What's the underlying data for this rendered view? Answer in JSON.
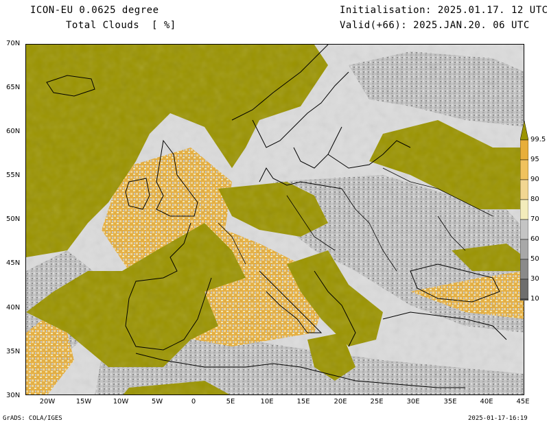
{
  "header": {
    "model": "ICON-EU 0.0625 degree",
    "variable": "Total Clouds  [ %]",
    "initialisation": "Initialisation: 2025.01.17. 12 UTC",
    "valid": "Valid(+66): 2025.JAN.20. 06 UTC"
  },
  "map": {
    "lat_labels": [
      "70N",
      "65N",
      "60N",
      "55N",
      "50N",
      "45N",
      "40N",
      "35N",
      "30N"
    ],
    "lon_labels": [
      "20W",
      "15W",
      "10W",
      "5W",
      "0",
      "5E",
      "10E",
      "15E",
      "20E",
      "25E",
      "30E",
      "35E",
      "40E",
      "45E"
    ],
    "lat_range": [
      30,
      70
    ],
    "lon_range": [
      -23,
      45
    ],
    "colors": {
      "overcast": "#9b9400",
      "c95": "#e8ae3a",
      "c90": "#f0c25e",
      "c80": "#f2d692",
      "c70": "#f3ecbb",
      "c60": "#c4c4c4",
      "c50": "#a8a8a8",
      "c30": "#8a8a8a",
      "c10": "#6e6e6e",
      "clear": "#dcdcdc"
    }
  },
  "colorbar": {
    "labels": [
      "99.5",
      "95",
      "90",
      "80",
      "70",
      "60",
      "50",
      "30",
      "10"
    ],
    "colors": [
      "#9b9400",
      "#e8ae3a",
      "#f0c25e",
      "#f2d692",
      "#f3ecbb",
      "#c4c4c4",
      "#a8a8a8",
      "#8a8a8a",
      "#6e6e6e",
      "#555555"
    ]
  },
  "footer": {
    "left": "GrADS: COLA/IGES",
    "right": "2025-01-17-16:19"
  }
}
